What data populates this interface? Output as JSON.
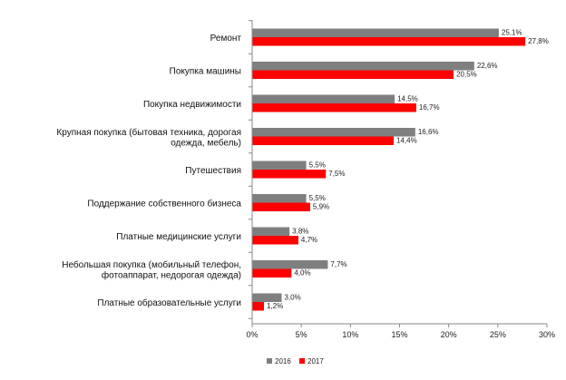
{
  "chart_data": {
    "type": "bar",
    "orientation": "horizontal",
    "categories": [
      [
        "Ремонт"
      ],
      [
        "Покупка машины"
      ],
      [
        "Покупка недвижимости"
      ],
      [
        "Крупная покупка (бытовая техника, дорогая",
        "одежда, мебель)"
      ],
      [
        "Путешествия"
      ],
      [
        "Поддержание собственного бизнеса"
      ],
      [
        "Платные медицинские услуги"
      ],
      [
        "Небольшая покупка (мобильный телефон,",
        "фотоаппарат, недорогая одежда)"
      ],
      [
        "Платные образовательные услуги"
      ]
    ],
    "series": [
      {
        "name": "2016",
        "color": "#7f7f7f",
        "values": [
          25.1,
          22.6,
          14.5,
          16.6,
          5.5,
          5.5,
          3.8,
          7.7,
          3.0
        ],
        "labels": [
          "25,1%",
          "22,6%",
          "14,5%",
          "16,6%",
          "5,5%",
          "5,5%",
          "3,8%",
          "7,7%",
          "3,0%"
        ]
      },
      {
        "name": "2017",
        "color": "#ff0000",
        "values": [
          27.8,
          20.5,
          16.7,
          14.4,
          7.5,
          5.9,
          4.7,
          4.0,
          1.2
        ],
        "labels": [
          "27,8%",
          "20,5%",
          "16,7%",
          "14,4%",
          "7,5%",
          "5,9%",
          "4,7%",
          "4,0%",
          "1,2%"
        ]
      }
    ],
    "xlim": [
      0,
      30
    ],
    "x_ticks": [
      0,
      5,
      10,
      15,
      20,
      25,
      30
    ],
    "x_tick_labels": [
      "0%",
      "5%",
      "10%",
      "15%",
      "20%",
      "25%",
      "30%"
    ],
    "grid": false,
    "legend_position": "bottom"
  }
}
